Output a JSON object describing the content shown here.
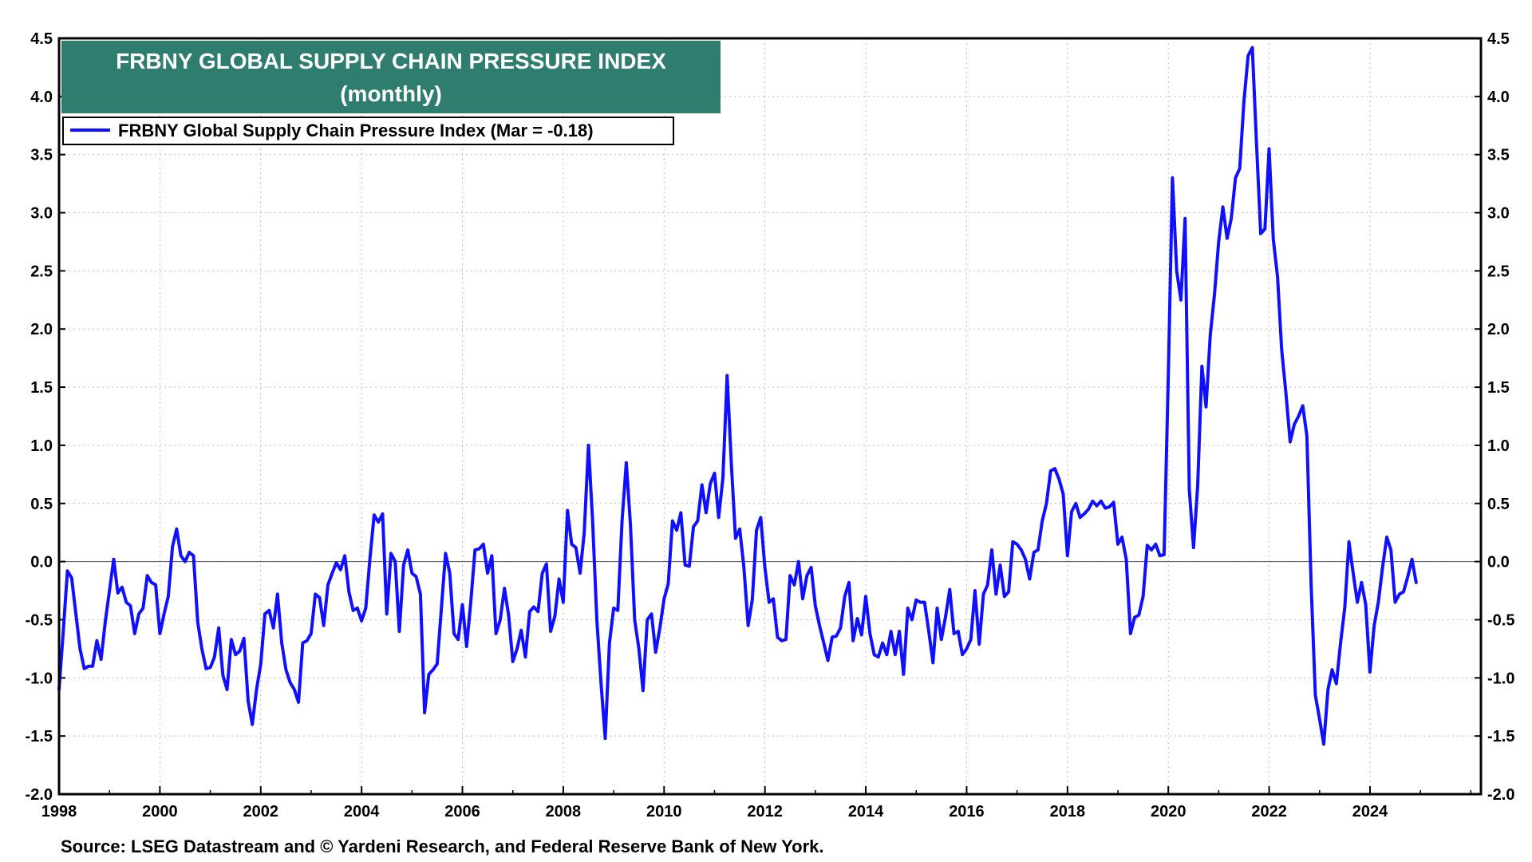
{
  "chart_data": {
    "type": "line",
    "title": "FRBNY GLOBAL SUPPLY CHAIN PRESSURE INDEX",
    "subtitle": "(monthly)",
    "legend": "FRBNY Global Supply Chain Pressure Index (Mar = -0.18)",
    "legend_placement": "top-left",
    "source": "Source: LSEG Datastream and © Yardeni Research, and Federal Reserve Bank of New York.",
    "x_start": 1998.0,
    "x_step": 0.08333,
    "xlim": [
      1998,
      2026.2
    ],
    "ylim": [
      -2.0,
      4.5
    ],
    "x_ticks": [
      "1998",
      "2000",
      "2002",
      "2004",
      "2006",
      "2008",
      "2010",
      "2012",
      "2014",
      "2016",
      "2018",
      "2020",
      "2022",
      "2024"
    ],
    "y_ticks": [
      "4.5",
      "4.0",
      "3.5",
      "3.0",
      "2.5",
      "2.0",
      "1.5",
      "1.0",
      "0.5",
      "0.0",
      "-0.5",
      "-1.0",
      "-1.5",
      "-2.0"
    ],
    "grid": true,
    "zero_line": true,
    "series": [
      {
        "name": "FRBNY Global Supply Chain Pressure Index (Mar = -0.18)",
        "color": "#1010ff",
        "values": [
          -1.1,
          -0.6,
          -0.08,
          -0.14,
          -0.45,
          -0.75,
          -0.92,
          -0.9,
          -0.9,
          -0.68,
          -0.84,
          -0.52,
          -0.25,
          0.02,
          -0.27,
          -0.22,
          -0.35,
          -0.38,
          -0.62,
          -0.45,
          -0.4,
          -0.12,
          -0.18,
          -0.2,
          -0.62,
          -0.45,
          -0.3,
          0.13,
          0.28,
          0.05,
          0.0,
          0.08,
          0.05,
          -0.52,
          -0.75,
          -0.92,
          -0.91,
          -0.82,
          -0.57,
          -0.98,
          -1.1,
          -0.67,
          -0.8,
          -0.77,
          -0.66,
          -1.2,
          -1.4,
          -1.1,
          -0.88,
          -0.45,
          -0.42,
          -0.57,
          -0.28,
          -0.7,
          -0.93,
          -1.04,
          -1.1,
          -1.21,
          -0.7,
          -0.68,
          -0.62,
          -0.28,
          -0.31,
          -0.55,
          -0.2,
          -0.1,
          -0.01,
          -0.07,
          0.05,
          -0.26,
          -0.42,
          -0.4,
          -0.51,
          -0.4,
          0.03,
          0.4,
          0.34,
          0.41,
          -0.45,
          0.07,
          0.0,
          -0.6,
          -0.03,
          0.1,
          -0.1,
          -0.13,
          -0.28,
          -1.3,
          -0.97,
          -0.93,
          -0.88,
          -0.4,
          0.07,
          -0.1,
          -0.62,
          -0.67,
          -0.37,
          -0.73,
          -0.35,
          0.1,
          0.11,
          0.15,
          -0.1,
          0.05,
          -0.62,
          -0.5,
          -0.23,
          -0.46,
          -0.86,
          -0.75,
          -0.59,
          -0.82,
          -0.43,
          -0.39,
          -0.43,
          -0.1,
          -0.02,
          -0.6,
          -0.47,
          -0.15,
          -0.35,
          0.44,
          0.15,
          0.12,
          -0.1,
          0.25,
          1.0,
          0.35,
          -0.5,
          -1.05,
          -1.52,
          -0.7,
          -0.4,
          -0.42,
          0.35,
          0.85,
          0.32,
          -0.5,
          -0.75,
          -1.11,
          -0.5,
          -0.45,
          -0.78,
          -0.57,
          -0.32,
          -0.19,
          0.35,
          0.27,
          0.42,
          -0.03,
          -0.04,
          0.3,
          0.35,
          0.66,
          0.42,
          0.67,
          0.76,
          0.38,
          0.72,
          1.6,
          0.85,
          0.2,
          0.28,
          -0.05,
          -0.55,
          -0.33,
          0.27,
          0.38,
          -0.05,
          -0.35,
          -0.32,
          -0.65,
          -0.68,
          -0.67,
          -0.12,
          -0.2,
          0.0,
          -0.32,
          -0.12,
          -0.05,
          -0.38,
          -0.55,
          -0.7,
          -0.85,
          -0.65,
          -0.64,
          -0.57,
          -0.3,
          -0.18,
          -0.68,
          -0.49,
          -0.63,
          -0.3,
          -0.62,
          -0.8,
          -0.82,
          -0.7,
          -0.8,
          -0.6,
          -0.8,
          -0.6,
          -0.97,
          -0.4,
          -0.5,
          -0.33,
          -0.35,
          -0.35,
          -0.6,
          -0.87,
          -0.4,
          -0.67,
          -0.47,
          -0.24,
          -0.62,
          -0.6,
          -0.8,
          -0.75,
          -0.67,
          -0.25,
          -0.71,
          -0.28,
          -0.2,
          0.1,
          -0.28,
          -0.03,
          -0.3,
          -0.26,
          0.17,
          0.15,
          0.1,
          0.02,
          -0.15,
          0.08,
          0.1,
          0.35,
          0.5,
          0.78,
          0.8,
          0.71,
          0.58,
          0.05,
          0.43,
          0.5,
          0.38,
          0.41,
          0.45,
          0.52,
          0.48,
          0.52,
          0.46,
          0.47,
          0.51,
          0.15,
          0.21,
          0.02,
          -0.62,
          -0.48,
          -0.46,
          -0.3,
          0.14,
          0.1,
          0.15,
          0.05,
          0.06,
          1.6,
          3.3,
          2.5,
          2.25,
          2.95,
          0.62,
          0.12,
          0.65,
          1.68,
          1.33,
          1.95,
          2.3,
          2.75,
          3.05,
          2.78,
          2.95,
          3.3,
          3.38,
          3.95,
          4.35,
          4.42,
          3.6,
          2.82,
          2.86,
          3.55,
          2.77,
          2.45,
          1.82,
          1.45,
          1.03,
          1.18,
          1.25,
          1.34,
          1.08,
          -0.2,
          -1.15,
          -1.35,
          -1.57,
          -1.1,
          -0.93,
          -1.05,
          -0.7,
          -0.4,
          0.17,
          -0.1,
          -0.35,
          -0.18,
          -0.37,
          -0.95,
          -0.55,
          -0.35,
          -0.05,
          0.21,
          0.1,
          -0.35,
          -0.28,
          -0.26,
          -0.13,
          0.02,
          -0.18
        ]
      }
    ]
  }
}
